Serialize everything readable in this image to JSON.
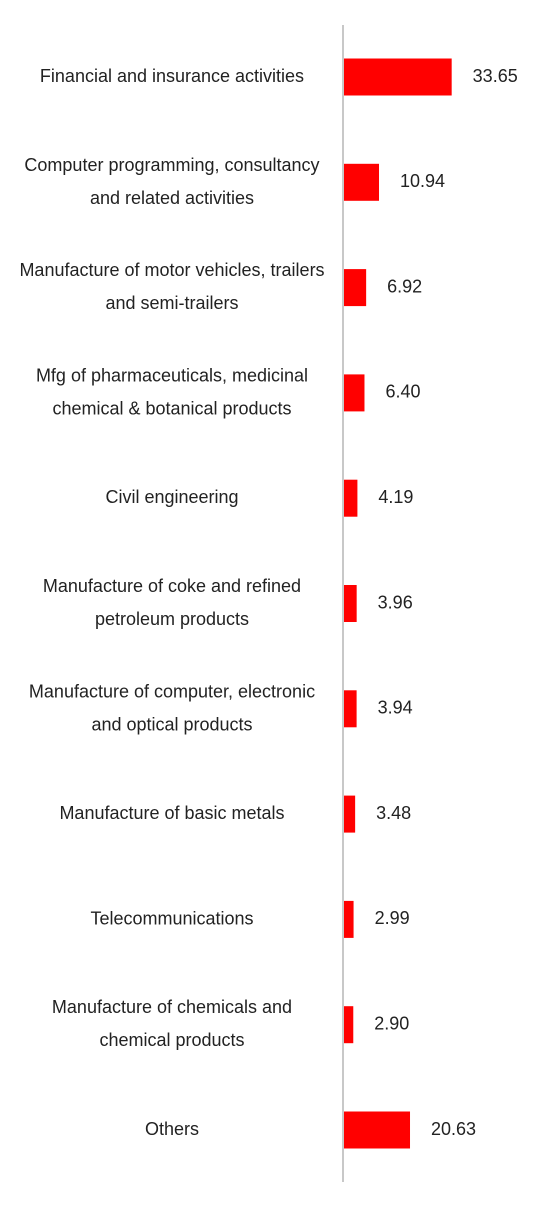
{
  "chart_data": {
    "type": "bar",
    "orientation": "horizontal",
    "categories": [
      "Financial and insurance activities",
      "Computer programming, consultancy and related activities",
      "Manufacture of motor vehicles, trailers and semi-trailers",
      "Mfg of pharmaceuticals, medicinal chemical & botanical products",
      "Civil engineering",
      "Manufacture of coke and refined petroleum products",
      "Manufacture of computer, electronic and optical products",
      "Manufacture of basic metals",
      "Telecommunications",
      "Manufacture of chemicals and chemical products",
      "Others"
    ],
    "values": [
      33.65,
      10.94,
      6.92,
      6.4,
      4.19,
      3.96,
      3.94,
      3.48,
      2.99,
      2.9,
      20.63
    ],
    "value_labels": [
      "33.65",
      "10.94",
      "6.92",
      "6.40",
      "4.19",
      "3.96",
      "3.94",
      "3.48",
      "2.99",
      "2.90",
      "20.63"
    ],
    "color": "#ff0000"
  }
}
